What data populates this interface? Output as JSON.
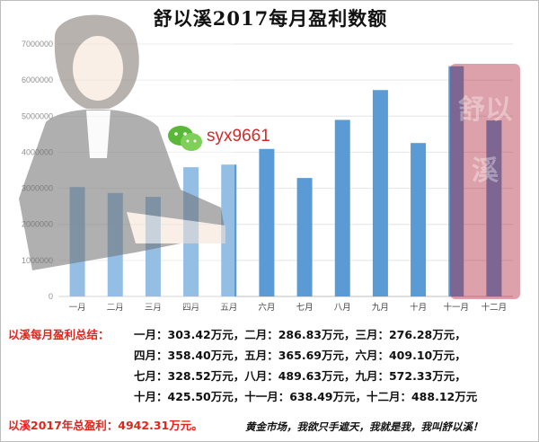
{
  "title": "舒以溪2017每月盈利数额",
  "chart_data": {
    "type": "bar",
    "title": "舒以溪2017每月盈利数额",
    "categories": [
      "一月",
      "二月",
      "三月",
      "四月",
      "五月",
      "六月",
      "七月",
      "八月",
      "九月",
      "十月",
      "十一月",
      "十二月"
    ],
    "values": [
      3034200,
      2868300,
      2762800,
      3584000,
      3656900,
      4091000,
      3285200,
      4896300,
      5723300,
      4255000,
      6384900,
      4881200
    ],
    "yticks": [
      "0",
      "1000000",
      "2000000",
      "3000000",
      "4000000",
      "5000000",
      "6000000",
      "7000000"
    ],
    "ylim": [
      0,
      7000000
    ],
    "grid": true,
    "bar_color": "#5b9bd5"
  },
  "watermark": {
    "wechat_id": "syx9661",
    "seal_text": "舒以溪"
  },
  "summary": {
    "monthly_label": "以溪每月盈利总结：",
    "lines": [
      "一月：303.42万元，二月：286.83万元，三月：276.28万元，",
      "四月：358.40万元，五月：365.69万元，六月：409.10万元，",
      "七月：328.52万元，八月：489.63万元，九月：572.33万元，",
      "十月：425.50万元，十一月：638.49万元，十二月：488.12万元"
    ],
    "total": "以溪2017年总盈利：4942.31万元。",
    "slogan": "黄金市场，我欲只手遮天，我就是我，我叫舒以溪！"
  },
  "colors": {
    "accent_red": "#e3241b",
    "bar": "#5b9bd5"
  }
}
